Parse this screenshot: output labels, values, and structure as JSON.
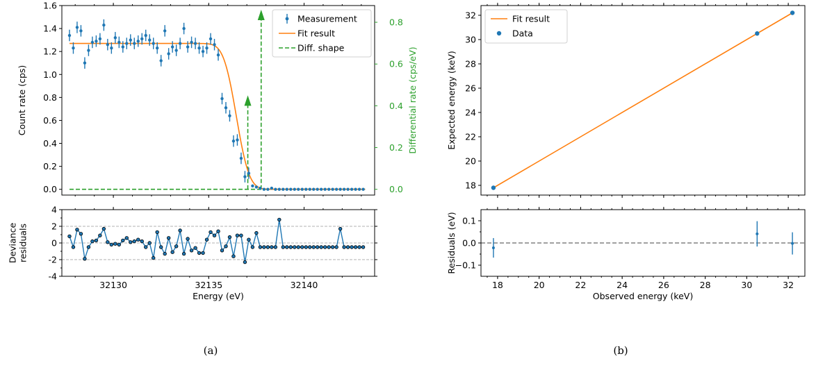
{
  "colors": {
    "blue": "#1f77b4",
    "orange": "#ff7f0e",
    "green": "#2ca02c",
    "grid_gray": "#b0b0b0",
    "zero_line_gray": "#808080"
  },
  "chart_data": [
    {
      "id": "a-top",
      "type": "scatter",
      "xlabel": "",
      "ylabel": "Count rate (cps)",
      "y2label": "Differential rate (cps/eV)",
      "xlim": [
        32127.3,
        32143.7
      ],
      "ylim": [
        -0.05,
        1.6
      ],
      "y2lim": [
        -0.0275,
        0.88
      ],
      "xticks": [
        32130,
        32135,
        32140
      ],
      "yticks": [
        "0.0",
        "0.2",
        "0.4",
        "0.6",
        "0.8",
        "1.0",
        "1.2",
        "1.4",
        "1.6"
      ],
      "y2ticks": [
        "0.0",
        "0.2",
        "0.4",
        "0.6",
        "0.8"
      ],
      "legend_position": "top-right",
      "legend": [
        "Measurement",
        "Fit result",
        "Diff. shape"
      ],
      "series": [
        {
          "name": "Measurement",
          "kind": "errorbar",
          "x_start": 32127.7,
          "x_step": 0.2,
          "y": [
            1.34,
            1.23,
            1.41,
            1.38,
            1.1,
            1.21,
            1.28,
            1.29,
            1.31,
            1.43,
            1.26,
            1.23,
            1.32,
            1.28,
            1.24,
            1.27,
            1.3,
            1.27,
            1.29,
            1.31,
            1.34,
            1.3,
            1.27,
            1.23,
            1.12,
            1.38,
            1.18,
            1.24,
            1.21,
            1.27,
            1.4,
            1.24,
            1.28,
            1.27,
            1.23,
            1.2,
            1.23,
            1.31,
            1.26,
            1.17,
            0.79,
            0.71,
            0.64,
            0.42,
            0.43,
            0.27,
            0.11,
            0.14,
            0.03,
            0.02,
            0.01,
            0.0,
            0.0,
            0.01,
            0.0,
            0.0,
            0.0,
            0.0,
            0.0,
            0.0,
            0.0,
            0.0,
            0.0,
            0.0,
            0.0,
            0.0,
            0.0,
            0.0,
            0.0,
            0.0,
            0.0,
            0.0,
            0.0,
            0.0,
            0.0,
            0.0,
            0.0,
            0.0
          ],
          "yerr": 0.05
        },
        {
          "name": "Fit result",
          "kind": "erfc-step",
          "plateau": 1.27,
          "edge_center": 32136.45,
          "edge_width": 0.75
        },
        {
          "name": "Diff. shape",
          "kind": "dashed-arrows",
          "baseline_x": [
            32127.7,
            32143.2
          ],
          "arrows": [
            {
              "x": 32137.05,
              "y": 0.44
            },
            {
              "x": 32137.75,
              "y": 0.85
            }
          ]
        }
      ]
    },
    {
      "id": "a-bottom",
      "type": "line",
      "xlabel": "Energy (eV)",
      "ylabel": "Deviance\nresiduals",
      "xlim": [
        32127.3,
        32143.7
      ],
      "ylim": [
        -4,
        4
      ],
      "xticks": [
        32130,
        32135,
        32140
      ],
      "yticks": [
        4,
        2,
        0,
        -2,
        -4
      ],
      "hlines": [
        2,
        0,
        -2
      ],
      "series": [
        {
          "name": "residuals",
          "x_start": 32127.7,
          "x_step": 0.2,
          "y": [
            0.8,
            -0.5,
            1.6,
            1.1,
            -1.9,
            -0.5,
            0.2,
            0.3,
            0.9,
            1.7,
            0.1,
            -0.2,
            -0.1,
            -0.2,
            0.3,
            0.6,
            0.1,
            0.2,
            0.4,
            0.2,
            -0.5,
            0.0,
            -1.8,
            1.3,
            -0.5,
            -1.3,
            0.6,
            -1.1,
            -0.4,
            1.5,
            -1.3,
            0.5,
            -0.9,
            -0.6,
            -1.2,
            -1.2,
            0.4,
            1.3,
            0.9,
            1.4,
            -0.9,
            -0.4,
            0.7,
            -1.6,
            0.9,
            0.9,
            -2.3,
            0.4,
            -0.5,
            1.2,
            -0.5,
            -0.5,
            -0.5,
            -0.5,
            -0.5,
            2.8,
            -0.5,
            -0.5,
            -0.5,
            -0.5,
            -0.5,
            -0.5,
            -0.5,
            -0.5,
            -0.5,
            -0.5,
            -0.5,
            -0.5,
            -0.5,
            -0.5,
            -0.5,
            1.7,
            -0.5,
            -0.5,
            -0.5,
            -0.5,
            -0.5,
            -0.5
          ]
        }
      ]
    },
    {
      "id": "b-top",
      "type": "scatter",
      "xlabel": "",
      "ylabel": "Expected energy (keV)",
      "xlim": [
        17.2,
        32.8
      ],
      "ylim": [
        17.2,
        32.8
      ],
      "xticks": [
        18,
        20,
        22,
        24,
        26,
        28,
        30,
        32
      ],
      "yticks": [
        18,
        20,
        22,
        24,
        26,
        28,
        30,
        32
      ],
      "legend_position": "top-left",
      "legend": [
        "Fit result",
        "Data"
      ],
      "series": [
        {
          "name": "Fit result",
          "kind": "line",
          "x": [
            17.8,
            32.2
          ],
          "y": [
            17.8,
            32.2
          ]
        },
        {
          "name": "Data",
          "kind": "points",
          "x": [
            17.8,
            30.5,
            32.2
          ],
          "y": [
            17.8,
            30.5,
            32.2
          ]
        }
      ]
    },
    {
      "id": "b-bottom",
      "type": "scatter",
      "xlabel": "Observed energy (keV)",
      "ylabel": "Residuals (eV)",
      "xlim": [
        17.2,
        32.8
      ],
      "ylim": [
        -0.15,
        0.15
      ],
      "xticks": [
        18,
        20,
        22,
        24,
        26,
        28,
        30,
        32
      ],
      "yticks": [
        "0.1",
        "0.0",
        "−0.1"
      ],
      "hlines": [
        0
      ],
      "series": [
        {
          "name": "residuals",
          "x": [
            17.8,
            30.5,
            32.2
          ],
          "y": [
            -0.022,
            0.041,
            -0.002
          ],
          "yerr": [
            0.044,
            0.057,
            0.05
          ]
        }
      ]
    }
  ],
  "captions": [
    "(a)",
    "(b)"
  ]
}
